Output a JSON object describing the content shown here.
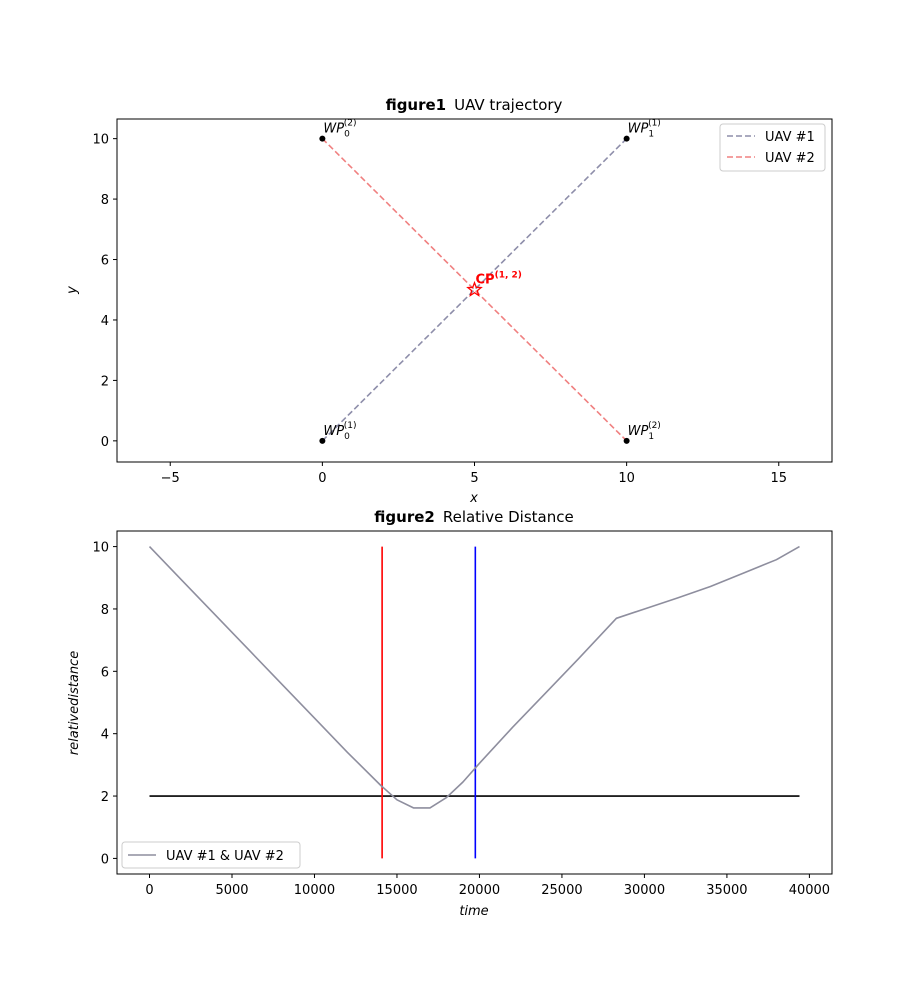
{
  "chart_data": [
    {
      "type": "line",
      "title_bold": "figure1",
      "title": "UAV trajectory",
      "xlabel": "x",
      "ylabel": "y",
      "xlim": [
        -6.75,
        16.75
      ],
      "ylim": [
        -0.7,
        10.65
      ],
      "xticks": [
        -5,
        0,
        5,
        10,
        15
      ],
      "yticks": [
        0,
        2,
        4,
        6,
        8,
        10
      ],
      "xtick_labels": [
        "−5",
        "0",
        "5",
        "10",
        "15"
      ],
      "ytick_labels": [
        "0",
        "2",
        "4",
        "6",
        "8",
        "10"
      ],
      "legend_position": "upper right",
      "series": [
        {
          "name": "UAV #1",
          "color": "#8e8eaa",
          "style": "dashed",
          "points": [
            [
              0,
              0
            ],
            [
              10,
              10
            ]
          ]
        },
        {
          "name": "UAV #2",
          "color": "#f08080",
          "style": "dashed",
          "points": [
            [
              0,
              10
            ],
            [
              10,
              0
            ]
          ]
        }
      ],
      "waypoints": [
        {
          "x": 0,
          "y": 10,
          "base": "WP",
          "sub": "0",
          "sup": "(2)"
        },
        {
          "x": 10,
          "y": 10,
          "base": "WP",
          "sub": "1",
          "sup": "(1)"
        },
        {
          "x": 0,
          "y": 0,
          "base": "WP",
          "sub": "0",
          "sup": "(1)"
        },
        {
          "x": 10,
          "y": 0,
          "base": "WP",
          "sub": "1",
          "sup": "(2)"
        }
      ],
      "conflict_point": {
        "x": 5,
        "y": 5,
        "label": "CP",
        "sup": "(1, 2)",
        "color": "#ff0000"
      }
    },
    {
      "type": "line",
      "title_bold": "figure2",
      "title": "Relative Distance",
      "xlabel": "time",
      "ylabel": "relativedistance",
      "xlim": [
        -1970,
        41370
      ],
      "ylim": [
        -0.5,
        10.5
      ],
      "xticks": [
        0,
        5000,
        10000,
        15000,
        20000,
        25000,
        30000,
        35000,
        40000
      ],
      "yticks": [
        0,
        2,
        4,
        6,
        8,
        10
      ],
      "xtick_labels": [
        "0",
        "5000",
        "10000",
        "15000",
        "20000",
        "25000",
        "30000",
        "35000",
        "40000"
      ],
      "ytick_labels": [
        "0",
        "2",
        "4",
        "6",
        "8",
        "10"
      ],
      "legend_position": "lower left",
      "series": [
        {
          "name": "UAV #1 & UAV #2",
          "color": "#8e8e9e",
          "points": [
            [
              0,
              10
            ],
            [
              2000,
              8.9
            ],
            [
              4000,
              7.8
            ],
            [
              6000,
              6.7
            ],
            [
              8000,
              5.6
            ],
            [
              10000,
              4.5
            ],
            [
              12000,
              3.4
            ],
            [
              14000,
              2.35
            ],
            [
              15000,
              1.88
            ],
            [
              16000,
              1.62
            ],
            [
              17000,
              1.62
            ],
            [
              18000,
              1.95
            ],
            [
              19000,
              2.45
            ],
            [
              20000,
              3.05
            ],
            [
              22000,
              4.2
            ],
            [
              24000,
              5.3
            ],
            [
              26000,
              6.4
            ],
            [
              28300,
              7.7
            ],
            [
              30000,
              8.0
            ],
            [
              32000,
              8.35
            ],
            [
              34000,
              8.72
            ],
            [
              36000,
              9.15
            ],
            [
              38000,
              9.58
            ],
            [
              39400,
              10.0
            ]
          ]
        }
      ],
      "threshold_line": {
        "y": 2,
        "x0": 0,
        "x1": 39400,
        "color": "#000000"
      },
      "vertical_lines": [
        {
          "x": 14100,
          "y0": 0,
          "y1": 10,
          "color": "#ff0000"
        },
        {
          "x": 19750,
          "y0": 0,
          "y1": 10,
          "color": "#0000ff"
        }
      ]
    }
  ]
}
